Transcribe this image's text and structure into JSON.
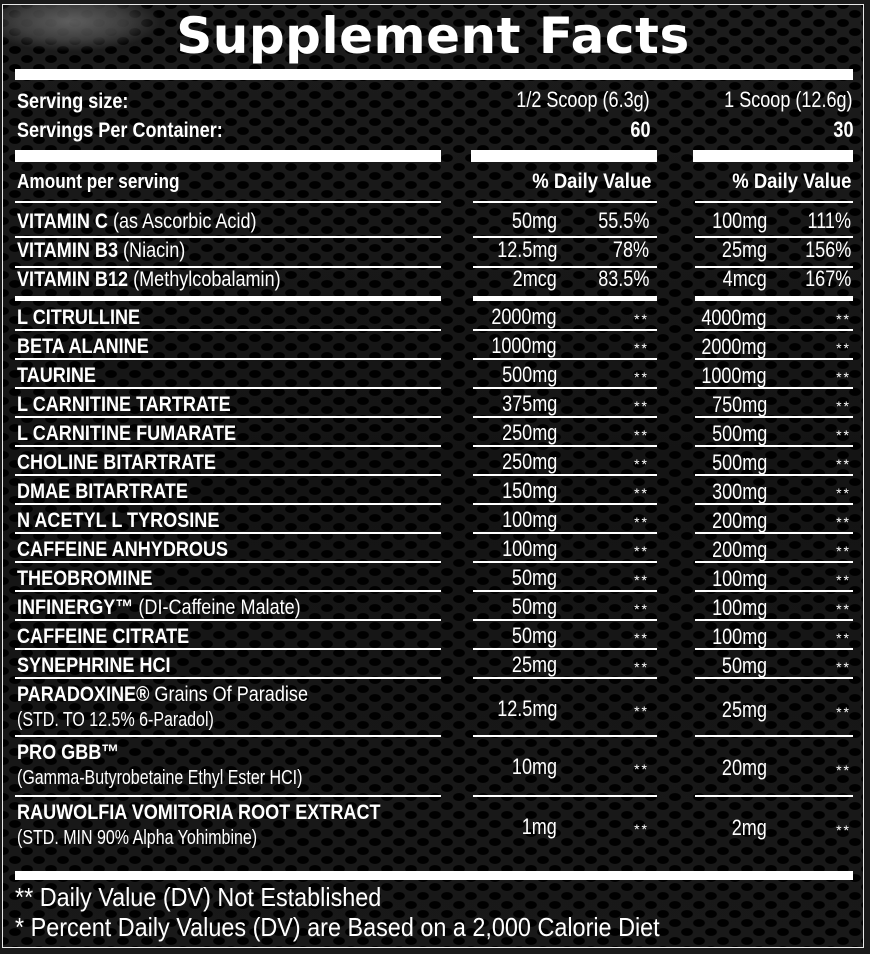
{
  "title": "Supplement Facts",
  "serving": {
    "size_label": "Serving size:",
    "size_half": "1/2 Scoop (6.3g)",
    "size_full": "1 Scoop (12.6g)",
    "per_container_label": "Servings Per Container:",
    "per_container_half": "60",
    "per_container_full": "30"
  },
  "headers": {
    "amount_per_serving": "Amount per serving",
    "dv_half": "% Daily Value",
    "dv_full": "% Daily Value"
  },
  "vitamins": [
    {
      "name": "VITAMIN C",
      "detail": "(as Ascorbic Acid)",
      "half_amount": "50mg",
      "half_dv": "55.5%",
      "full_amount": "100mg",
      "full_dv": "111%"
    },
    {
      "name": "VITAMIN B3",
      "detail": "(Niacin)",
      "half_amount": "12.5mg",
      "half_dv": "78%",
      "full_amount": "25mg",
      "full_dv": "156%"
    },
    {
      "name": "VITAMIN B12",
      "detail": "(Methylcobalamin)",
      "half_amount": "2mcg",
      "half_dv": "83.5%",
      "full_amount": "4mcg",
      "full_dv": "167%"
    }
  ],
  "ingredients": [
    {
      "name": "L CITRULLINE",
      "detail": "",
      "half_amount": "2000mg",
      "half_dv": "**",
      "full_amount": "4000mg",
      "full_dv": "**"
    },
    {
      "name": "BETA ALANINE",
      "detail": "",
      "half_amount": "1000mg",
      "half_dv": "**",
      "full_amount": "2000mg",
      "full_dv": "**"
    },
    {
      "name": "TAURINE",
      "detail": "",
      "half_amount": "500mg",
      "half_dv": "**",
      "full_amount": "1000mg",
      "full_dv": "**"
    },
    {
      "name": "L CARNITINE TARTRATE",
      "detail": "",
      "half_amount": "375mg",
      "half_dv": "**",
      "full_amount": "750mg",
      "full_dv": "**"
    },
    {
      "name": "L CARNITINE FUMARATE",
      "detail": "",
      "half_amount": "250mg",
      "half_dv": "**",
      "full_amount": "500mg",
      "full_dv": "**"
    },
    {
      "name": "CHOLINE BITARTRATE",
      "detail": "",
      "half_amount": "250mg",
      "half_dv": "**",
      "full_amount": "500mg",
      "full_dv": "**"
    },
    {
      "name": "DMAE BITARTRATE",
      "detail": "",
      "half_amount": "150mg",
      "half_dv": "**",
      "full_amount": "300mg",
      "full_dv": "**"
    },
    {
      "name": "N ACETYL L TYROSINE",
      "detail": "",
      "half_amount": "100mg",
      "half_dv": "**",
      "full_amount": "200mg",
      "full_dv": "**"
    },
    {
      "name": "CAFFEINE ANHYDROUS",
      "detail": "",
      "half_amount": "100mg",
      "half_dv": "**",
      "full_amount": "200mg",
      "full_dv": "**"
    },
    {
      "name": "THEOBROMINE",
      "detail": "",
      "half_amount": "50mg",
      "half_dv": "**",
      "full_amount": "100mg",
      "full_dv": "**"
    },
    {
      "name": "INFINERGY™",
      "detail": "(DI-Caffeine Malate)",
      "half_amount": "50mg",
      "half_dv": "**",
      "full_amount": "100mg",
      "full_dv": "**"
    },
    {
      "name": "CAFFEINE CITRATE",
      "detail": "",
      "half_amount": "50mg",
      "half_dv": "**",
      "full_amount": "100mg",
      "full_dv": "**"
    },
    {
      "name": "SYNEPHRINE HCI",
      "detail": "",
      "half_amount": "25mg",
      "half_dv": "**",
      "full_amount": "50mg",
      "full_dv": "**"
    }
  ],
  "ingredients_two_line": [
    {
      "name": "PARADOXINE®",
      "detail": "Grains Of Paradise",
      "line2": "(STD. TO 12.5% 6-Paradol)",
      "half_amount": "12.5mg",
      "half_dv": "**",
      "full_amount": "25mg",
      "full_dv": "**"
    },
    {
      "name": "PRO GBB™",
      "detail": "",
      "line2": "(Gamma-Butyrobetaine Ethyl Ester HCI)",
      "half_amount": "10mg",
      "half_dv": "**",
      "full_amount": "20mg",
      "full_dv": "**"
    },
    {
      "name": "RAUWOLFIA VOMITORIA ROOT EXTRACT",
      "detail": "",
      "line2": "(STD. MIN 90% Alpha Yohimbine)",
      "half_amount": "1mg",
      "half_dv": "**",
      "full_amount": "2mg",
      "full_dv": "**"
    }
  ],
  "footnotes": {
    "dv_not_established": "** Daily Value (DV) Not Established",
    "calorie_basis": "* Percent Daily Values (DV) are Based on a 2,000 Calorie Diet"
  },
  "colors": {
    "background": "#0d0d0d",
    "text": "#ffffff",
    "rules": "#ffffff"
  }
}
